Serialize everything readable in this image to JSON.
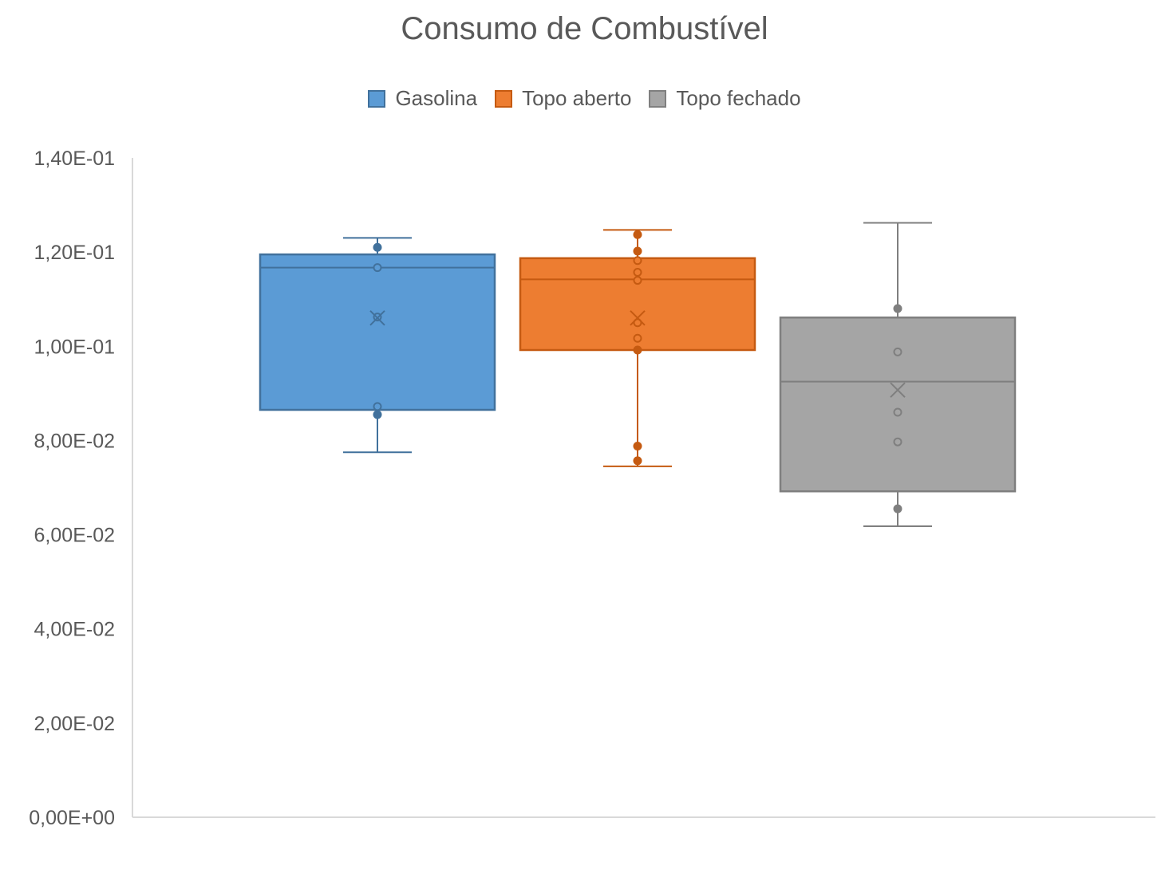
{
  "chart_data": {
    "type": "box",
    "title": "Consumo de Combustível",
    "xlabel": "",
    "ylabel": "",
    "ylim": [
      0,
      0.14
    ],
    "yticks": [
      0,
      0.02,
      0.04,
      0.06,
      0.08,
      0.1,
      0.12,
      0.14
    ],
    "ytick_labels": [
      "0,00E+00",
      "2,00E-02",
      "4,00E-02",
      "6,00E-02",
      "8,00E-02",
      "1,00E-01",
      "1,20E-01",
      "1,40E-01"
    ],
    "legend_position": "top",
    "grid": false,
    "series": [
      {
        "name": "Gasolina",
        "color": "#5B9BD5",
        "edge": "#41719C",
        "min": 0.0775,
        "q1": 0.0865,
        "median": 0.1167,
        "q3": 0.1195,
        "max": 0.123,
        "mean": 0.106,
        "points": [
          0.121,
          0.1167,
          0.1062,
          0.0872,
          0.0855
        ]
      },
      {
        "name": "Topo aberto",
        "color": "#ED7D31",
        "edge": "#C55A11",
        "min": 0.0745,
        "q1": 0.0992,
        "median": 0.1142,
        "q3": 0.1187,
        "max": 0.1247,
        "mean": 0.106,
        "points": [
          0.1237,
          0.1202,
          0.1182,
          0.1157,
          0.114,
          0.105,
          0.1017,
          0.0992,
          0.0788,
          0.0757
        ]
      },
      {
        "name": "Topo fechado",
        "color": "#A5A5A5",
        "edge": "#7F7F7F",
        "min": 0.0618,
        "q1": 0.0692,
        "median": 0.0925,
        "q3": 0.1061,
        "max": 0.1262,
        "mean": 0.0907,
        "points": [
          0.108,
          0.0988,
          0.086,
          0.0797,
          0.0655
        ]
      }
    ]
  }
}
